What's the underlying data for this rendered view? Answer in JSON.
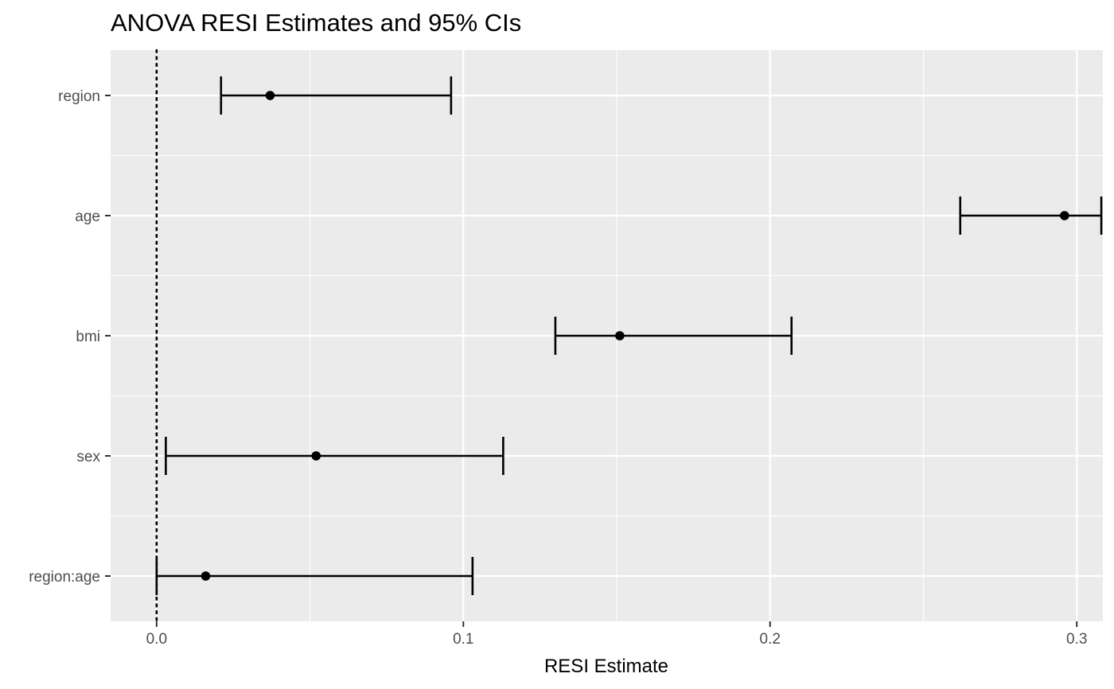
{
  "chart_data": {
    "type": "forest",
    "title": "ANOVA RESI Estimates and 95% CIs",
    "xlabel": "RESI Estimate",
    "ylabel": "",
    "xlim": [
      -0.015,
      0.3085
    ],
    "x_ticks": [
      0.0,
      0.1,
      0.2,
      0.3
    ],
    "x_tick_labels": [
      "0.0",
      "0.1",
      "0.2",
      "0.3"
    ],
    "reference_line": {
      "x": 0.0,
      "style": "dotted"
    },
    "grid": true,
    "colors": {
      "panel": "#ebebeb",
      "grid": "#ffffff",
      "marks": "#000000",
      "tick_text": "#4d4d4d"
    },
    "rows": [
      {
        "label": "region",
        "estimate": 0.037,
        "lower": 0.021,
        "upper": 0.096
      },
      {
        "label": "age",
        "estimate": 0.296,
        "lower": 0.262,
        "upper": 0.308
      },
      {
        "label": "bmi",
        "estimate": 0.151,
        "lower": 0.13,
        "upper": 0.207
      },
      {
        "label": "sex",
        "estimate": 0.052,
        "lower": 0.003,
        "upper": 0.113
      },
      {
        "label": "region:age",
        "estimate": 0.016,
        "lower": 0.0,
        "upper": 0.103
      }
    ]
  }
}
